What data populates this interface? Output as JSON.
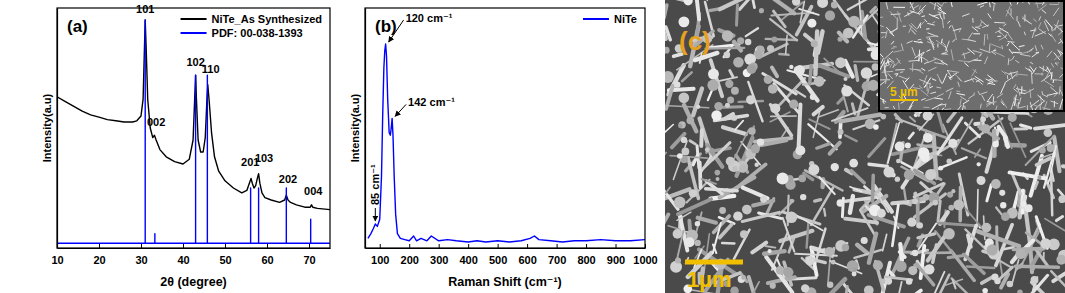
{
  "chart_data": [
    {
      "type": "line",
      "title": "(a)",
      "x_label": "2θ (degree)",
      "y_label": "Intensity(a.u)",
      "xlim": [
        10,
        75
      ],
      "xticks": [
        10,
        20,
        30,
        40,
        50,
        60,
        70
      ],
      "ylim": [
        0,
        100
      ],
      "tick_labels": "x",
      "legend": "upper right",
      "series": [
        {
          "name": "NiTe_As Synthesized",
          "color": "#000000",
          "x": [
            10,
            12,
            14,
            16,
            18,
            20,
            22,
            24,
            26,
            28,
            29,
            30,
            30.5,
            30.8,
            31.0,
            31.2,
            31.6,
            32.2,
            32.8,
            33.2,
            33.6,
            34.5,
            36,
            38,
            40,
            41.5,
            42.4,
            42.8,
            43.0,
            43.2,
            43.6,
            44.2,
            44.8,
            45.3,
            45.7,
            45.9,
            46.2,
            46.8,
            47.5,
            48.5,
            50,
            52,
            54,
            55.2,
            55.8,
            56.2,
            56.5,
            56.9,
            57.3,
            57.7,
            58.0,
            58.3,
            58.8,
            59.5,
            61,
            63,
            64.2,
            64.6,
            65.0,
            65.6,
            67,
            69,
            70.3,
            70.6,
            70.9,
            72,
            75
          ],
          "values": [
            63,
            61,
            59,
            57,
            55.5,
            54.5,
            53.5,
            53,
            52.5,
            52.5,
            53,
            55,
            62,
            82,
            95,
            85,
            62,
            50,
            46,
            47,
            45,
            41,
            38,
            36,
            35,
            37,
            45,
            63,
            72,
            62,
            45,
            40,
            40,
            46,
            62,
            68,
            62,
            48,
            38,
            32,
            28,
            25,
            23,
            24,
            27,
            29,
            27,
            25,
            26,
            29,
            31,
            27,
            23,
            21,
            20,
            19,
            20,
            22,
            20,
            19,
            18,
            17,
            17,
            18,
            17,
            16.5,
            16
          ]
        },
        {
          "name": "PDF: 00-038-1393",
          "color": "#0000ff",
          "x": [
            10,
            31,
            31,
            31,
            33.3,
            33.3,
            33.3,
            43,
            43,
            43,
            45.8,
            45.8,
            45.8,
            56.1,
            56.1,
            56.1,
            58,
            58,
            58,
            64.6,
            64.6,
            64.6,
            70.4,
            70.4,
            70.4,
            75
          ],
          "values": [
            2,
            2,
            95,
            2,
            2,
            6,
            2,
            2,
            72,
            2,
            2,
            72,
            2,
            2,
            25,
            2,
            2,
            25,
            2,
            2,
            25,
            2,
            2,
            12,
            2,
            2
          ]
        }
      ],
      "annotations": [
        {
          "text": "101",
          "x": 31,
          "y": 98
        },
        {
          "text": "002",
          "x": 33.6,
          "y": 51
        },
        {
          "text": "102",
          "x": 43,
          "y": 76
        },
        {
          "text": "110",
          "x": 46.6,
          "y": 73
        },
        {
          "text": "201",
          "x": 56,
          "y": 34
        },
        {
          "text": "103",
          "x": 59.3,
          "y": 36
        },
        {
          "text": "202",
          "x": 65,
          "y": 27
        },
        {
          "text": "004",
          "x": 71,
          "y": 22
        }
      ]
    },
    {
      "type": "line",
      "title": "(b)",
      "x_label": "Raman Shift (cm⁻¹)",
      "y_label": "Intensity(a.u)",
      "xlim": [
        50,
        1000
      ],
      "xticks": [
        100,
        200,
        300,
        400,
        500,
        600,
        700,
        800,
        900,
        1000
      ],
      "ylim": [
        0,
        100
      ],
      "tick_labels": "x",
      "legend": "upper right",
      "series": [
        {
          "name": "NiTe",
          "color": "#0000ff",
          "x": [
            60,
            70,
            78,
            85,
            92,
            100,
            106,
            110,
            114,
            117,
            120,
            123,
            127,
            132,
            136,
            139,
            142,
            145,
            149,
            154,
            160,
            170,
            185,
            200,
            215,
            225,
            240,
            260,
            275,
            300,
            330,
            360,
            400,
            430,
            460,
            500,
            540,
            580,
            610,
            625,
            640,
            680,
            720,
            760,
            800,
            850,
            900,
            950,
            1000
          ],
          "values": [
            4,
            6,
            8,
            10,
            9,
            12,
            30,
            55,
            75,
            82,
            85,
            80,
            62,
            48,
            47,
            50,
            54,
            47,
            30,
            14,
            6,
            4,
            3.5,
            3,
            5,
            3,
            4,
            3,
            5,
            3,
            3.5,
            3,
            2.5,
            3,
            2.5,
            3,
            2.5,
            3,
            4,
            5,
            3.5,
            3,
            2.5,
            3,
            3,
            3.5,
            3,
            3,
            3.5
          ]
        }
      ],
      "annotations": [
        {
          "text": "120 cm⁻¹",
          "x": 120,
          "y": 85
        },
        {
          "text": "142 cm⁻¹",
          "x": 142,
          "y": 54
        },
        {
          "text": "85 cm⁻¹",
          "x": 85,
          "y": 10
        }
      ]
    }
  ],
  "image_panel": {
    "label": "(c)",
    "scale_bar": "1µm",
    "inset_scale_bar": "5 µm"
  }
}
